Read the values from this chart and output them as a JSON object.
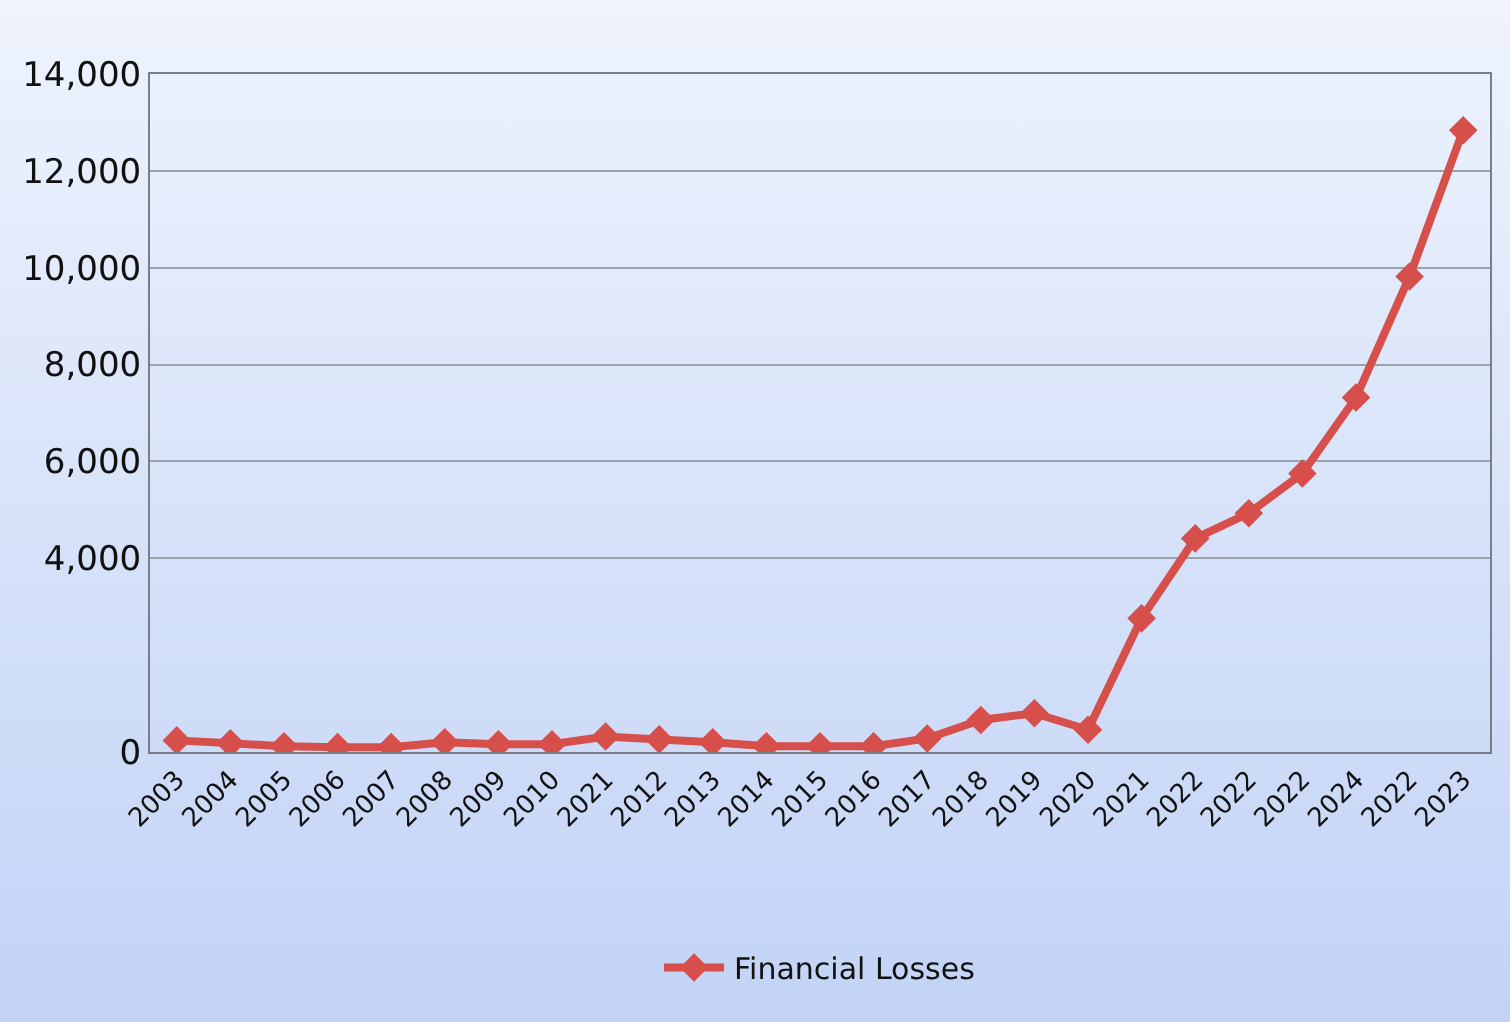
{
  "chart_data": {
    "type": "line",
    "categories": [
      "2003",
      "2004",
      "2005",
      "2006",
      "2007",
      "2008",
      "2009",
      "2010",
      "2021",
      "2012",
      "2013",
      "2014",
      "2015",
      "2016",
      "2017",
      "2018",
      "2019",
      "2020",
      "2021",
      "2022",
      "2022",
      "2022",
      "2024",
      "2022",
      "2023"
    ],
    "series": [
      {
        "name": "Financial Losses",
        "color": "#d64f4a",
        "values": [
          240,
          180,
          120,
          100,
          100,
          200,
          160,
          160,
          320,
          260,
          200,
          120,
          120,
          120,
          280,
          660,
          800,
          460,
          2760,
          4410,
          4930,
          5750,
          7320,
          9820,
          12840
        ]
      }
    ],
    "ylim": [
      0,
      14000
    ],
    "yticks": [
      0,
      {
        "value": 4000,
        "label": "4,000"
      },
      {
        "value": 6000,
        "label": "6,000"
      },
      {
        "value": 8000,
        "label": "8,000"
      },
      {
        "value": 10000,
        "label": "10,000"
      },
      {
        "value": 12000,
        "label": "12,000"
      },
      {
        "value": 14000,
        "label": "14,000"
      }
    ],
    "grid": "y",
    "legend": "bottom",
    "marker": "diamond",
    "line_style": "solid"
  }
}
